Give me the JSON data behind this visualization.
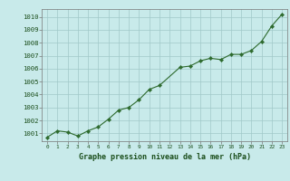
{
  "x": [
    0,
    1,
    2,
    3,
    4,
    5,
    6,
    7,
    8,
    9,
    10,
    11,
    13,
    14,
    15,
    16,
    17,
    18,
    19,
    20,
    21,
    22,
    23
  ],
  "y": [
    1000.7,
    1001.2,
    1001.1,
    1000.8,
    1001.2,
    1001.5,
    1002.1,
    1002.8,
    1003.0,
    1003.6,
    1004.4,
    1004.7,
    1006.1,
    1006.2,
    1006.6,
    1006.8,
    1006.7,
    1007.1,
    1007.1,
    1007.4,
    1008.1,
    1009.3,
    1010.2
  ],
  "line_color": "#2d6a2d",
  "marker_color": "#2d6a2d",
  "bg_color": "#c8eaea",
  "grid_color": "#a0c8c8",
  "plot_bg": "#c8eaea",
  "ylabel_min": 1001,
  "ylabel_max": 1010,
  "xlabel": "Graphe pression niveau de la mer (hPa)",
  "xlabel_color": "#1a4d1a",
  "tick_color": "#1a4d1a",
  "spine_color": "#777777",
  "x_all": [
    0,
    1,
    2,
    3,
    4,
    5,
    6,
    7,
    8,
    9,
    10,
    11,
    12,
    13,
    14,
    15,
    16,
    17,
    18,
    19,
    20,
    21,
    22,
    23
  ]
}
